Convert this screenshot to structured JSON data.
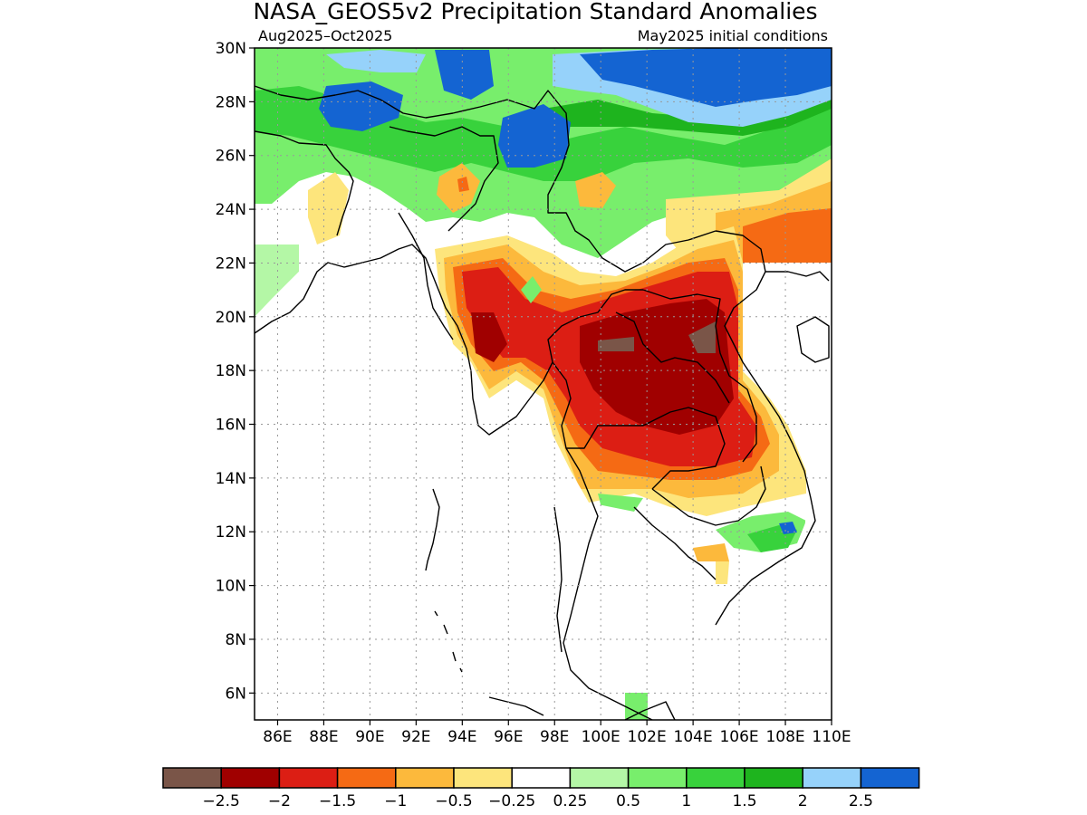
{
  "header": {
    "title": "NASA_GEOS5v2 Precipitation Standard Anomalies",
    "period": "Aug2025–Oct2025",
    "initial_conditions": "May2025 initial conditions"
  },
  "map": {
    "lat_labels": [
      "30N",
      "28N",
      "26N",
      "24N",
      "22N",
      "20N",
      "18N",
      "16N",
      "14N",
      "12N",
      "10N",
      "8N",
      "6N"
    ],
    "lon_labels": [
      "86E",
      "88E",
      "90E",
      "92E",
      "94E",
      "96E",
      "98E",
      "100E",
      "102E",
      "104E",
      "106E",
      "108E",
      "110E"
    ],
    "lat_range": [
      5,
      30
    ],
    "lon_range": [
      85,
      110
    ],
    "grid": true
  },
  "colorbar": {
    "colors": [
      "#7a5548",
      "#a00000",
      "#dc1e14",
      "#f56a14",
      "#fcb93c",
      "#fde57c",
      "#ffffff",
      "#b4f7a6",
      "#78ee6c",
      "#38d23c",
      "#1eb41e",
      "#96d2fa",
      "#1464d2"
    ],
    "labels": [
      "−2.5",
      "−2",
      "−1.5",
      "−1",
      "−0.5",
      "−0.25",
      "0.25",
      "0.5",
      "1",
      "1.5",
      "2",
      "2.5"
    ]
  }
}
